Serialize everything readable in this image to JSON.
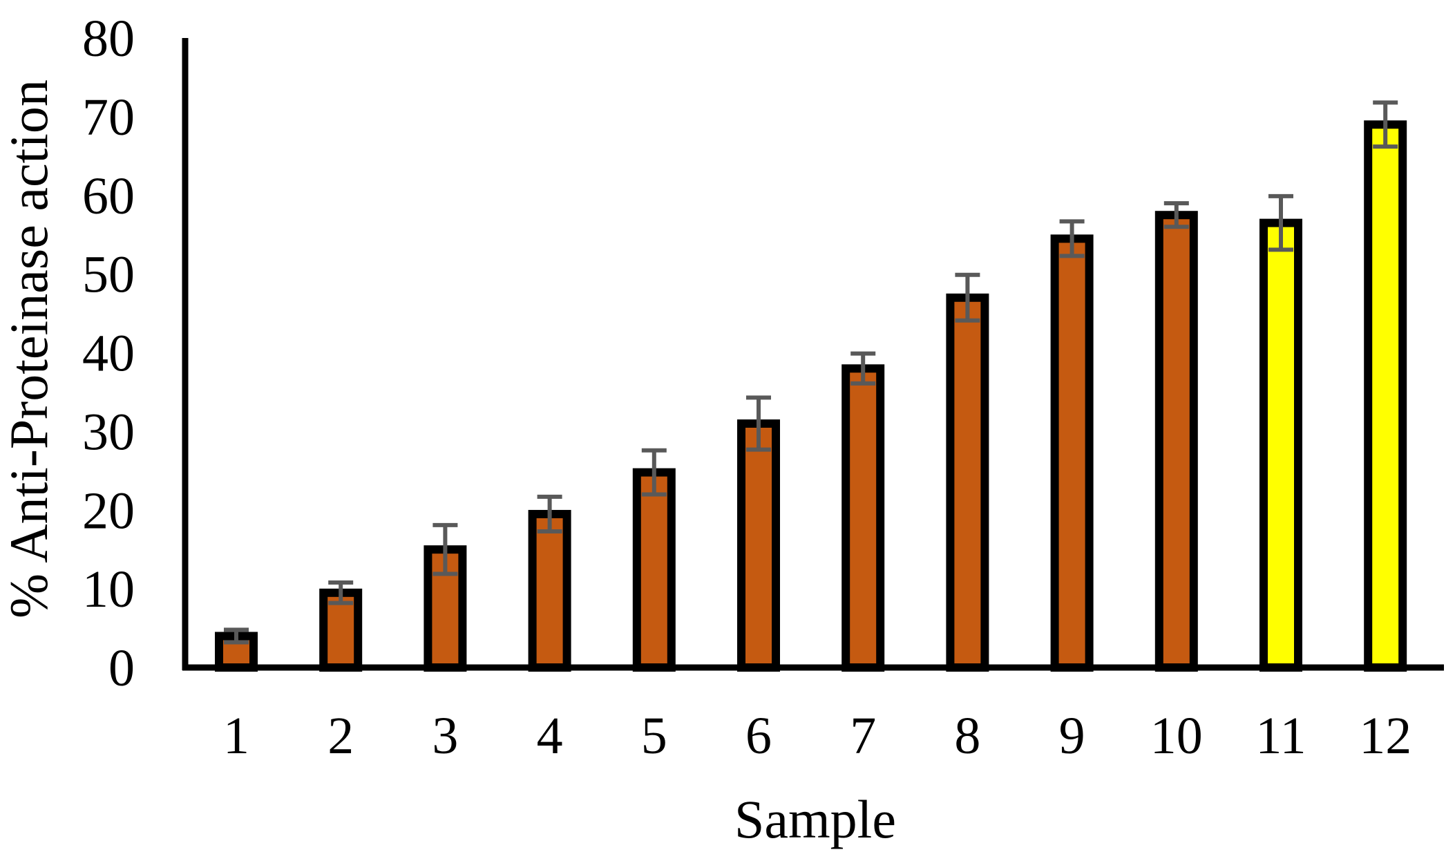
{
  "chart_data": {
    "type": "bar",
    "title": "",
    "xlabel": "Sample",
    "ylabel": "% Anti-Proteinase action",
    "categories": [
      "1",
      "2",
      "3",
      "4",
      "5",
      "6",
      "7",
      "8",
      "9",
      "10",
      "11",
      "12"
    ],
    "values": [
      4,
      9.5,
      15,
      19.5,
      24.8,
      31,
      38,
      47,
      54.5,
      57.5,
      56.5,
      69
    ],
    "errors": [
      0.8,
      1.3,
      3.1,
      2.2,
      2.8,
      3.3,
      1.9,
      2.9,
      2.2,
      1.5,
      3.4,
      2.8
    ],
    "bar_colors": [
      "#c55a11",
      "#c55a11",
      "#c55a11",
      "#c55a11",
      "#c55a11",
      "#c55a11",
      "#c55a11",
      "#c55a11",
      "#c55a11",
      "#c55a11",
      "#ffff00",
      "#ffff00"
    ],
    "bar_outline_color": "#000000",
    "error_bar_color": "#595959",
    "ylim": [
      0,
      80
    ],
    "yticks": [
      0,
      10,
      20,
      30,
      40,
      50,
      60,
      70,
      80
    ],
    "grid": false,
    "legend": "none"
  }
}
